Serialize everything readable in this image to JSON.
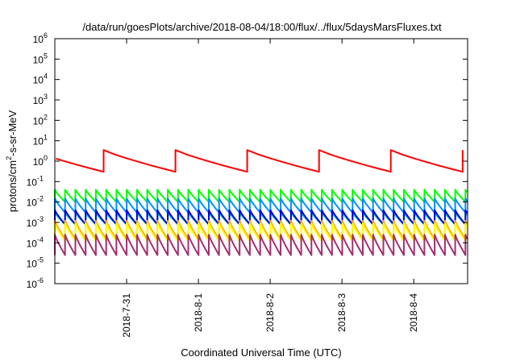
{
  "chart_data": {
    "type": "line",
    "title": "/data/run/goesPlots/archive/2018-08-04/18:00/flux/../flux/5daysMarsFluxes.txt",
    "xlabel": "Coordinated Universal Time (UTC)",
    "ylabel": "protons/cm²-s-sr-MeV",
    "ylabel_base": "protons/cm",
    "ylabel_sup": "2",
    "ylabel_rest": "-s-sr-MeV",
    "yscale": "log",
    "ylim": [
      1e-06,
      1000000.0
    ],
    "y_tick_exponents": [
      -6,
      -5,
      -4,
      -3,
      -2,
      -1,
      0,
      1,
      2,
      3,
      4,
      5,
      6
    ],
    "y_tick_base": "10",
    "xlim_days": [
      0,
      5.75
    ],
    "x_ticks": [
      {
        "label": "2018-7-31",
        "day": 1.0
      },
      {
        "label": "2018-8-1",
        "day": 2.0
      },
      {
        "label": "2018-8-2",
        "day": 3.0
      },
      {
        "label": "2018-8-3",
        "day": 4.0
      },
      {
        "label": "2018-8-4",
        "day": 5.0
      }
    ],
    "grid": false,
    "legend": "none",
    "series": [
      {
        "color": "#ff0000",
        "period": 1.0,
        "phase": 0.68,
        "hi": 3.5,
        "lo": 0.3,
        "width": 2
      },
      {
        "color": "#00ff00",
        "period": 0.143,
        "phase": 0.0,
        "hi": 0.04,
        "lo": 0.01,
        "width": 2
      },
      {
        "color": "#0090ff",
        "period": 0.143,
        "phase": 0.0,
        "hi": 0.015,
        "lo": 0.003,
        "width": 2
      },
      {
        "color": "#00d0a0",
        "period": 0.143,
        "phase": 0.0,
        "hi": 0.003,
        "lo": 0.0008,
        "width": 2
      },
      {
        "color": "#0000dd",
        "period": 0.143,
        "phase": 0.0,
        "hi": 0.004,
        "lo": 0.0008,
        "width": 2
      },
      {
        "color": "#ffa500",
        "period": 0.143,
        "phase": 0.0,
        "hi": 0.0012,
        "lo": 0.00015,
        "width": 2
      },
      {
        "color": "#ffff00",
        "period": 0.143,
        "phase": 0.0,
        "hi": 0.0009,
        "lo": 0.00012,
        "width": 2
      },
      {
        "color": "#a03070",
        "period": 0.143,
        "phase": 0.0,
        "hi": 0.00025,
        "lo": 2.5e-05,
        "width": 2
      }
    ]
  }
}
